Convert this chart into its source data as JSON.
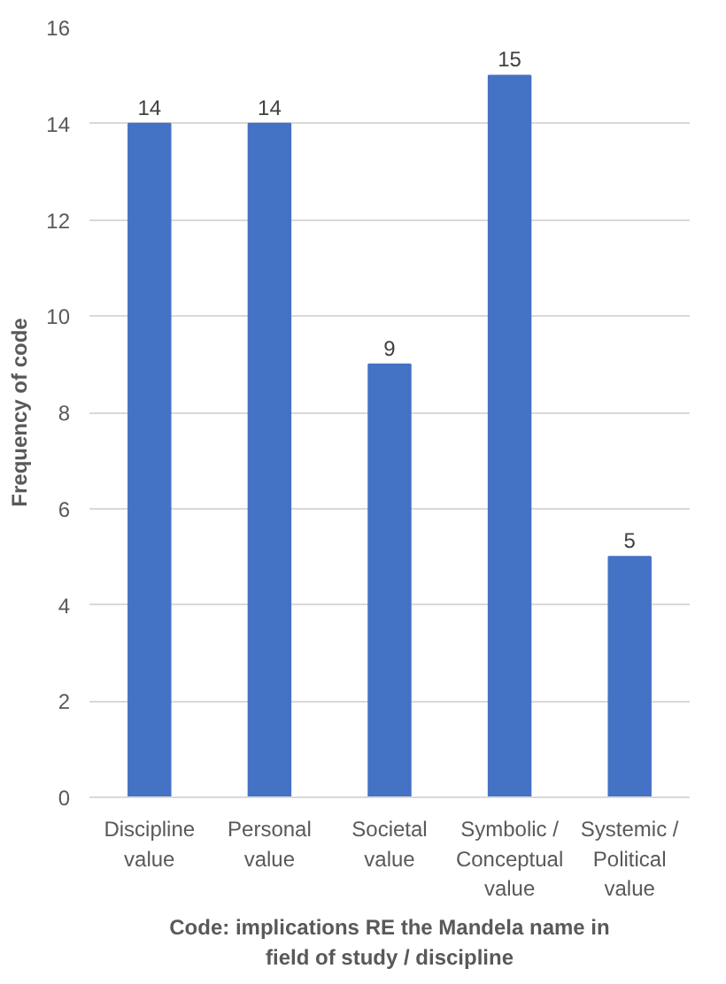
{
  "chart_data": {
    "type": "bar",
    "xlabel": "Code: implications RE the Mandela name in field of study / discipline",
    "ylabel": "Frequency of code",
    "categories": [
      "Discipline value",
      "Personal value",
      "Societal value",
      "Symbolic / Conceptual value",
      "Systemic / Political value"
    ],
    "values": [
      14,
      14,
      9,
      15,
      5
    ],
    "color": "#4472c4",
    "data_labels": true,
    "ylim": [
      0,
      16
    ],
    "yticks": [
      0,
      2,
      4,
      6,
      8,
      10,
      12,
      14,
      16
    ],
    "grid": "y"
  }
}
